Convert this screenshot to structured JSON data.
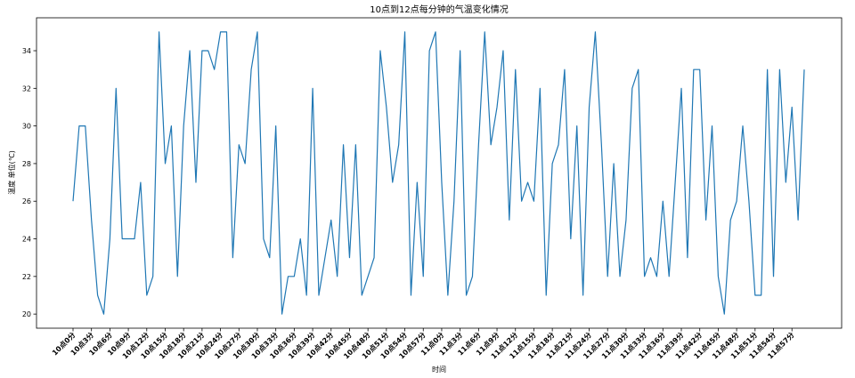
{
  "chart_data": {
    "type": "line",
    "title": "10点到12点每分钟的气温变化情况",
    "xlabel": "时间",
    "ylabel": "温度 单位(℃)",
    "ylim": [
      19.25,
      35.75
    ],
    "yticks": [
      20,
      22,
      24,
      26,
      28,
      30,
      32,
      34
    ],
    "line_color": "#1f77b4",
    "x": [
      "10点0分",
      "10点1分",
      "10点2分",
      "10点3分",
      "10点4分",
      "10点5分",
      "10点6分",
      "10点7分",
      "10点8分",
      "10点9分",
      "10点10分",
      "10点11分",
      "10点12分",
      "10点13分",
      "10点14分",
      "10点15分",
      "10点16分",
      "10点17分",
      "10点18分",
      "10点19分",
      "10点20分",
      "10点21分",
      "10点22分",
      "10点23分",
      "10点24分",
      "10点25分",
      "10点26分",
      "10点27分",
      "10点28分",
      "10点29分",
      "10点30分",
      "10点31分",
      "10点32分",
      "10点33分",
      "10点34分",
      "10点35分",
      "10点36分",
      "10点37分",
      "10点38分",
      "10点39分",
      "10点40分",
      "10点41分",
      "10点42分",
      "10点43分",
      "10点44分",
      "10点45分",
      "10点46分",
      "10点47分",
      "10点48分",
      "10点49分",
      "10点50分",
      "10点51分",
      "10点52分",
      "10点53分",
      "10点54分",
      "10点55分",
      "10点56分",
      "10点57分",
      "10点58分",
      "10点59分",
      "11点0分",
      "11点1分",
      "11点2分",
      "11点3分",
      "11点4分",
      "11点5分",
      "11点6分",
      "11点7分",
      "11点8分",
      "11点9分",
      "11点10分",
      "11点11分",
      "11点12分",
      "11点13分",
      "11点14分",
      "11点15分",
      "11点16分",
      "11点17分",
      "11点18分",
      "11点19分",
      "11点20分",
      "11点21分",
      "11点22分",
      "11点23分",
      "11点24分",
      "11点25分",
      "11点26分",
      "11点27分",
      "11点28分",
      "11点29分",
      "11点30分",
      "11点31分",
      "11点32分",
      "11点33分",
      "11点34分",
      "11点35分",
      "11点36分",
      "11点37分",
      "11点38分",
      "11点39分",
      "11点40分",
      "11点41分",
      "11点42分",
      "11点43分",
      "11点44分",
      "11点45分",
      "11点46分",
      "11点47分",
      "11点48分",
      "11点49分",
      "11点50分",
      "11点51分",
      "11点52分",
      "11点53分",
      "11点54分",
      "11点55分",
      "11点56分",
      "11点57分",
      "11点58分",
      "11点59分"
    ],
    "xtick_labels": [
      "10点0分",
      "10点3分",
      "10点6分",
      "10点9分",
      "10点12分",
      "10点15分",
      "10点18分",
      "10点21分",
      "10点24分",
      "10点27分",
      "10点30分",
      "10点33分",
      "10点36分",
      "10点39分",
      "10点42分",
      "10点45分",
      "10点48分",
      "10点51分",
      "10点54分",
      "10点57分",
      "11点0分",
      "11点3分",
      "11点6分",
      "11点9分",
      "11点12分",
      "11点15分",
      "11点18分",
      "11点21分",
      "11点24分",
      "11点27分",
      "11点30分",
      "11点33分",
      "11点36分",
      "11点39分",
      "11点42分",
      "11点45分",
      "11点48分",
      "11点51分",
      "11点54分",
      "11点57分"
    ],
    "series": [
      {
        "values": [
          26,
          30,
          30,
          25,
          21,
          20,
          24,
          32,
          24,
          24,
          24,
          27,
          21,
          22,
          35,
          28,
          30,
          22,
          30,
          34,
          27,
          34,
          34,
          33,
          35,
          35,
          23,
          29,
          28,
          33,
          35,
          24,
          23,
          30,
          20,
          22,
          22,
          24,
          21,
          32,
          21,
          23,
          25,
          22,
          29,
          23,
          29,
          21,
          22,
          23,
          34,
          31,
          27,
          29,
          35,
          21,
          27,
          22,
          34,
          35,
          27,
          21,
          26,
          34,
          21,
          22,
          29,
          35,
          29,
          31,
          34,
          25,
          33,
          26,
          27,
          26,
          32,
          21,
          28,
          29,
          33,
          24,
          30,
          21,
          31,
          35,
          29,
          22,
          28,
          22,
          25,
          32,
          33,
          22,
          23,
          22,
          26,
          22,
          27,
          32,
          23,
          33,
          33,
          25,
          30,
          22,
          20,
          25,
          26,
          30,
          26,
          21,
          21,
          33,
          22,
          33,
          27,
          31,
          25,
          33
        ]
      }
    ]
  }
}
